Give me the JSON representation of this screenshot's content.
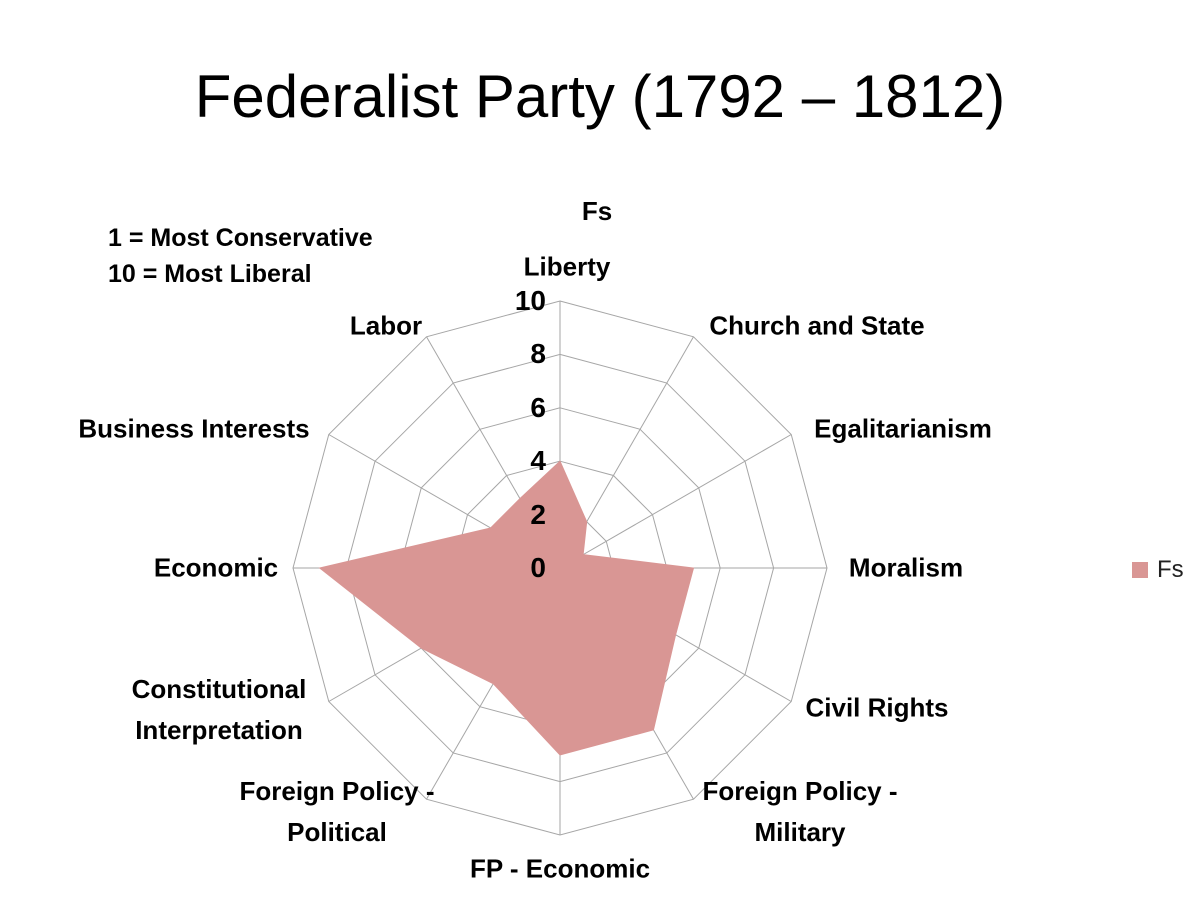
{
  "title": "Federalist Party (1792 – 1812)",
  "annotation": {
    "line1": "1 = Most Conservative",
    "line2": "10 = Most Liberal"
  },
  "chart_data": {
    "type": "radar",
    "title": "Fs",
    "categories": [
      "Liberty",
      "Church and State",
      "Egalitarianism",
      "Moralism",
      "Civil Rights",
      "Foreign Policy -\nMilitary",
      "FP - Economic",
      "Foreign Policy -\nPolitical",
      "Constitutional\nInterpretation",
      "Economic",
      "Business Interests",
      "Labor"
    ],
    "series": [
      {
        "name": "Fs",
        "values": [
          4,
          2,
          1,
          5,
          5,
          7,
          7,
          5,
          6,
          9,
          3,
          3
        ],
        "fill_color": "#d99694"
      }
    ],
    "scale": {
      "min": 0,
      "max": 10,
      "ring_step": 2,
      "tick_labels": [
        "0",
        "2",
        "4",
        "6",
        "8",
        "10"
      ]
    },
    "grid": {
      "on": true,
      "color": "#a6a6a6",
      "spokes": 12
    },
    "legend": {
      "position": "right",
      "label": "Fs",
      "swatch_color": "#d99694"
    }
  }
}
